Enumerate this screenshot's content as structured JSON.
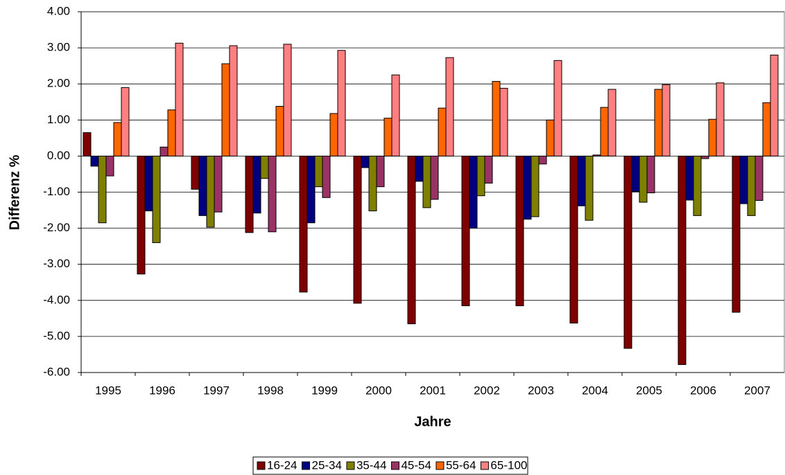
{
  "chart_data": {
    "type": "bar",
    "x_label": "Jahre",
    "y_label": "Differenz %",
    "categories": [
      "1995",
      "1996",
      "1997",
      "1998",
      "1999",
      "2000",
      "2001",
      "2002",
      "2003",
      "2004",
      "2005",
      "2006",
      "2007"
    ],
    "series": [
      {
        "name": "16-24",
        "color": "#800000",
        "values": [
          0.65,
          -3.27,
          -0.92,
          -2.12,
          -3.77,
          -4.08,
          -4.65,
          -4.15,
          -4.15,
          -4.63,
          -5.33,
          -5.78,
          -4.33
        ]
      },
      {
        "name": "25-34",
        "color": "#000080",
        "values": [
          -0.28,
          -1.52,
          -1.65,
          -1.58,
          -1.85,
          -0.32,
          -0.7,
          -2.0,
          -1.75,
          -1.38,
          -0.98,
          -1.22,
          -1.32
        ]
      },
      {
        "name": "35-44",
        "color": "#808000",
        "values": [
          -1.85,
          -2.4,
          -1.97,
          -0.62,
          -0.85,
          -1.52,
          -1.43,
          -1.1,
          -1.68,
          -1.78,
          -1.28,
          -1.65,
          -1.65
        ]
      },
      {
        "name": "45-54",
        "color": "#993366",
        "values": [
          -0.55,
          0.25,
          -1.55,
          -2.1,
          -1.15,
          -0.85,
          -1.2,
          -0.75,
          -0.22,
          0.03,
          -1.02,
          -0.07,
          -1.23
        ]
      },
      {
        "name": "55-64",
        "color": "#FF6600",
        "values": [
          0.93,
          1.28,
          2.56,
          1.38,
          1.18,
          1.05,
          1.33,
          2.07,
          1.0,
          1.35,
          1.85,
          1.02,
          1.48
        ]
      },
      {
        "name": "65-100",
        "color": "#FF8080",
        "values": [
          1.9,
          3.13,
          3.06,
          3.1,
          2.93,
          2.25,
          2.73,
          1.88,
          2.65,
          1.85,
          1.98,
          2.03,
          2.8
        ]
      }
    ],
    "ylim": [
      -6,
      4
    ],
    "yticks": [
      {
        "value": -6,
        "label": "-6.00"
      },
      {
        "value": -5,
        "label": "-5.00"
      },
      {
        "value": -4,
        "label": "-4.00"
      },
      {
        "value": -3,
        "label": "-3.00"
      },
      {
        "value": -2,
        "label": "-2.00"
      },
      {
        "value": -1,
        "label": "-1.00"
      },
      {
        "value": 0,
        "label": "0.00"
      },
      {
        "value": 1,
        "label": "1.00"
      },
      {
        "value": 2,
        "label": "2.00"
      },
      {
        "value": 3,
        "label": "3.00"
      },
      {
        "value": 4,
        "label": "4.00"
      }
    ],
    "grid": true,
    "legend": "bottom"
  }
}
